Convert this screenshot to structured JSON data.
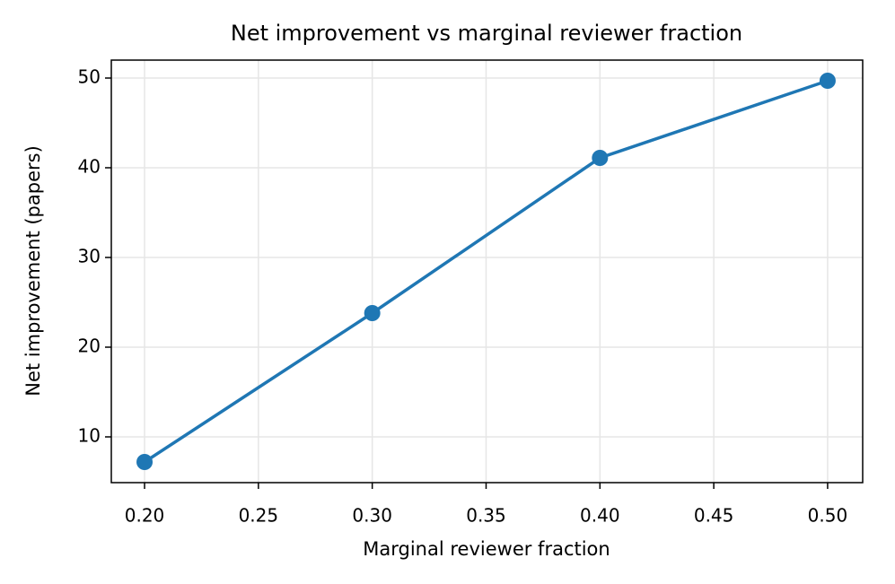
{
  "chart_data": {
    "type": "line",
    "title": "Net improvement vs marginal reviewer fraction",
    "x_label": "Marginal reviewer fraction",
    "y_label": "Net improvement (papers)",
    "x": [
      0.2,
      0.3,
      0.4,
      0.5
    ],
    "values": [
      7.2,
      23.8,
      41.1,
      49.7
    ],
    "color": "#1f77b4",
    "xlim": [
      0.1854,
      0.5154
    ],
    "ylim": [
      4.9,
      52
    ],
    "xticks": [
      {
        "value": 0.2,
        "label": "0.20"
      },
      {
        "value": 0.25,
        "label": "0.25"
      },
      {
        "value": 0.3,
        "label": "0.30"
      },
      {
        "value": 0.35,
        "label": "0.35"
      },
      {
        "value": 0.4,
        "label": "0.40"
      },
      {
        "value": 0.45,
        "label": "0.45"
      },
      {
        "value": 0.5,
        "label": "0.50"
      }
    ],
    "yticks": [
      10,
      20,
      30,
      40,
      50
    ],
    "grid": true
  }
}
